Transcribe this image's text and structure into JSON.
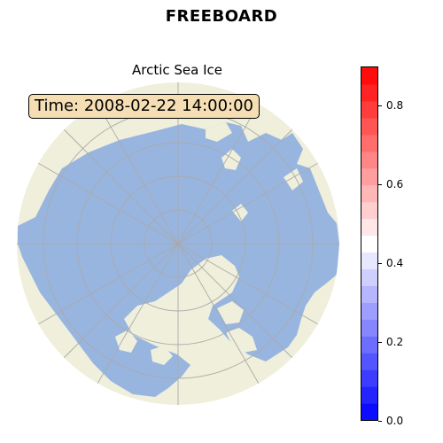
{
  "header": {
    "title": "FREEBOARD"
  },
  "map": {
    "subtitle": "Arctic Sea Ice",
    "time_label": "Time: 2008-02-22 14:00:00",
    "projection": "north-polar-stereographic",
    "colors": {
      "land": "#efefdb",
      "sea_ice": "#98b5e0",
      "graticule": "#aaaaaa"
    }
  },
  "colorbar": {
    "colormap": "bwr",
    "min": 0.0,
    "max": 0.9,
    "ticks": [
      "0.0",
      "0.2",
      "0.4",
      "0.6",
      "0.8"
    ],
    "tick_values": [
      0.0,
      0.2,
      0.4,
      0.6,
      0.8
    ]
  }
}
